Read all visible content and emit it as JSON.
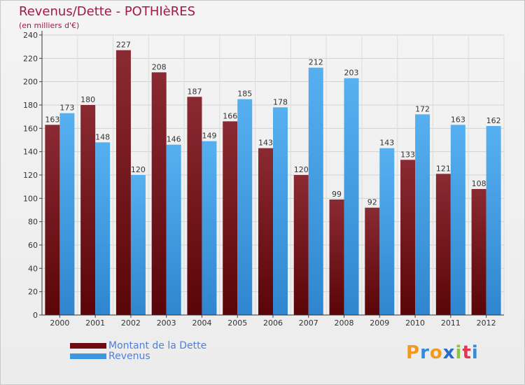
{
  "header": {
    "title": "Revenus/Dette - POTHIèRES",
    "subtitle": "(en milliers d'€)"
  },
  "legend": {
    "items": [
      {
        "label": "Montant de la Dette",
        "color": "#6e0a12"
      },
      {
        "label": "Revenus",
        "color": "#3d97df"
      }
    ]
  },
  "logo": {
    "text": "Proxiti",
    "colors": [
      "#f39a1e",
      "#3a88d8",
      "#f39a1e",
      "#2a6cc8",
      "#8cc63f",
      "#e8344e",
      "#3a88d8"
    ]
  },
  "chart_data": {
    "type": "bar",
    "title": "Revenus/Dette - POTHIèRES",
    "subtitle": "(en milliers d'€)",
    "categories": [
      "2000",
      "2001",
      "2002",
      "2003",
      "2004",
      "2005",
      "2006",
      "2007",
      "2008",
      "2009",
      "2010",
      "2011",
      "2012"
    ],
    "series": [
      {
        "name": "Montant de la Dette",
        "color": "#7a1a22",
        "values": [
          163,
          180,
          227,
          208,
          187,
          166,
          143,
          120,
          99,
          92,
          133,
          121,
          108
        ]
      },
      {
        "name": "Revenus",
        "color": "#4aa3e8",
        "values": [
          173,
          148,
          120,
          146,
          149,
          185,
          178,
          212,
          203,
          143,
          172,
          163,
          162
        ]
      }
    ],
    "ylim": [
      0,
      240
    ],
    "yticks": [
      0,
      20,
      40,
      60,
      80,
      100,
      120,
      140,
      160,
      180,
      200,
      220,
      240
    ],
    "grid": true,
    "legend_position": "bottom-left"
  }
}
